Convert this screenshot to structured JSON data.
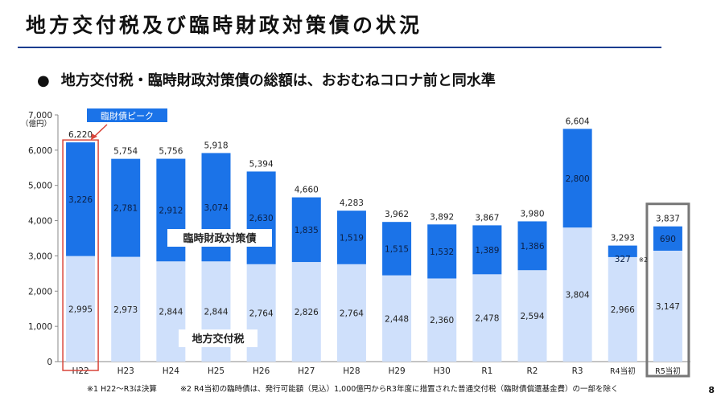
{
  "title": "地方交付税及び臨時財政対策債の状況",
  "bullet": "地方交付税・臨時財政対策債の総額は、おおむねコロナ前と同水準",
  "page_number": "8",
  "footnotes": [
    "※1  H22～R3は決算",
    "※2  R4当初の臨時債は、発行可能額（見込）1,000億円からR3年度に措置された普通交付税（臨財債償還基金費）の一部を除く"
  ],
  "colors": {
    "koufuzei": "#cfe0fb",
    "rinzaisai": "#1b73e8",
    "highlight_red": "#d9453a",
    "highlight_gray": "#777777",
    "callout_bg": "#1b73e8"
  },
  "chart_data": {
    "type": "bar",
    "stacked": true,
    "categories": [
      "H22",
      "H23",
      "H24",
      "H25",
      "H26",
      "H27",
      "H28",
      "H29",
      "H30",
      "R1",
      "R2",
      "R3",
      "R4当初",
      "R5当初"
    ],
    "series": [
      {
        "name": "地方交付税",
        "values": [
          2995,
          2973,
          2844,
          2844,
          2764,
          2826,
          2764,
          2448,
          2360,
          2478,
          2594,
          3804,
          2966,
          3147
        ]
      },
      {
        "name": "臨時財政対策債",
        "values": [
          3226,
          2781,
          2912,
          3074,
          2630,
          1835,
          1519,
          1515,
          1532,
          1389,
          1386,
          2800,
          327,
          690
        ]
      }
    ],
    "value_labels_bottom": [
      "2,995",
      "2,973",
      "2,844",
      "2,844",
      "2,764",
      "2,826",
      "2,764",
      "2,448",
      "2,360",
      "2,478",
      "2,594",
      "3,804",
      "2,966",
      "3,147"
    ],
    "value_labels_top": [
      "3,226",
      "2,781",
      "2,912",
      "3,074",
      "2,630",
      "1,835",
      "1,519",
      "1,515",
      "1,532",
      "1,389",
      "1,386",
      "2,800",
      "327",
      "690"
    ],
    "totals": [
      "6,220",
      "5,754",
      "5,756",
      "5,918",
      "5,394",
      "4,660",
      "4,283",
      "3,962",
      "3,892",
      "3,867",
      "3,980",
      "6,604",
      "3,293",
      "3,837"
    ],
    "ylim": [
      0,
      7000
    ],
    "yticks": [
      0,
      1000,
      2000,
      3000,
      4000,
      5000,
      6000,
      7000
    ],
    "ytick_labels": [
      "0",
      "1,000",
      "2,000",
      "3,000",
      "4,000",
      "5,000",
      "6,000",
      "7,000"
    ],
    "yunit": "（億円）",
    "grid": false,
    "series_labels": {
      "rinzaisai": "臨時財政対策債",
      "koufuzei": "地方交付税"
    },
    "annotations": {
      "peak_callout": "臨財債ピーク",
      "note_mark": "※2"
    }
  }
}
